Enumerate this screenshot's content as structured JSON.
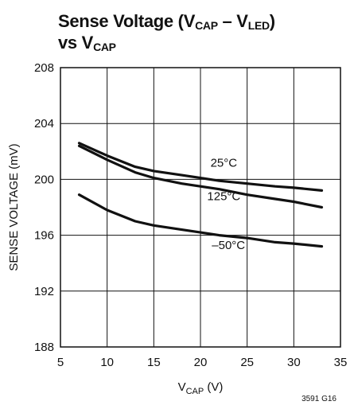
{
  "chart_data": {
    "type": "line",
    "title": {
      "line1": {
        "text": "Sense Voltage (V",
        "sub1": "CAP",
        "mid": " – V",
        "sub2": "LED",
        "end": ")"
      },
      "line2": {
        "text": "vs V",
        "sub": "CAP"
      }
    },
    "xlabel": {
      "main": "V",
      "sub": "CAP",
      "unit": " (V)"
    },
    "ylabel": "SENSE VOLTAGE (mV)",
    "xlim": [
      5,
      35
    ],
    "ylim": [
      188,
      208
    ],
    "x_ticks": [
      5,
      10,
      15,
      20,
      25,
      30,
      35
    ],
    "y_ticks": [
      188,
      192,
      196,
      200,
      204,
      208
    ],
    "grid": true,
    "series": [
      {
        "name": "25°C",
        "x": [
          7,
          10,
          13,
          15,
          18,
          20,
          22,
          25,
          28,
          30,
          33
        ],
        "y": [
          202.6,
          201.7,
          200.9,
          200.6,
          200.3,
          200.1,
          199.9,
          199.7,
          199.5,
          199.4,
          199.2
        ]
      },
      {
        "name": "125°C",
        "x": [
          7,
          10,
          13,
          15,
          18,
          20,
          22,
          25,
          28,
          30,
          33
        ],
        "y": [
          202.4,
          201.4,
          200.5,
          200.1,
          199.7,
          199.5,
          199.3,
          198.9,
          198.6,
          198.4,
          198.0
        ]
      },
      {
        "name": "–50°C",
        "x": [
          7,
          10,
          13,
          15,
          18,
          20,
          22,
          25,
          28,
          30,
          33
        ],
        "y": [
          198.9,
          197.8,
          197.0,
          196.7,
          196.4,
          196.2,
          196.0,
          195.8,
          195.5,
          195.4,
          195.2
        ]
      }
    ],
    "curve_labels": [
      {
        "text": "25°C",
        "x": 22.5,
        "y": 200.9
      },
      {
        "text": "125°C",
        "x": 22.5,
        "y": 198.5
      },
      {
        "text": "–50°C",
        "x": 23,
        "y": 195.0
      }
    ]
  },
  "figure_code": "3591 G16"
}
